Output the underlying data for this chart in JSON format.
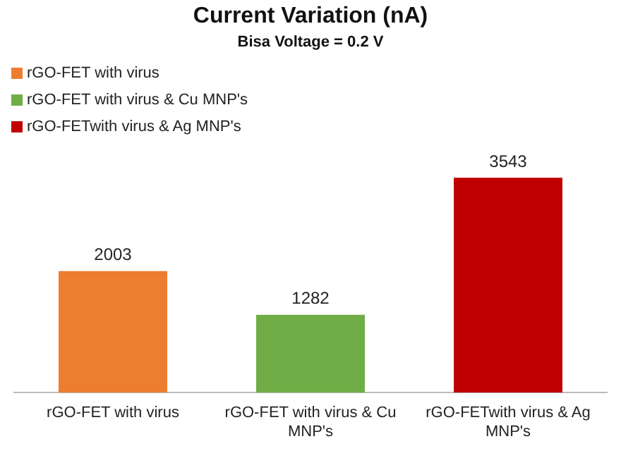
{
  "chart_data": {
    "type": "bar",
    "title": "Current Variation (nA)",
    "subtitle": "Bisa Voltage = 0.2 V",
    "categories": [
      "rGO-FET with virus",
      "rGO-FET with virus & Cu MNP's",
      "rGO-FETwith virus & Ag MNP's"
    ],
    "series": [
      {
        "name": "rGO-FET with virus",
        "color": "#ed7d31",
        "values": [
          2003,
          null,
          null
        ]
      },
      {
        "name": "rGO-FET with virus & Cu MNP's",
        "color": "#70ad47",
        "values": [
          null,
          1282,
          null
        ]
      },
      {
        "name": "rGO-FETwith virus & Ag MNP's",
        "color": "#c00000",
        "values": [
          null,
          null,
          3543
        ]
      }
    ],
    "data_labels": true,
    "legend": "top left",
    "grid": false
  }
}
